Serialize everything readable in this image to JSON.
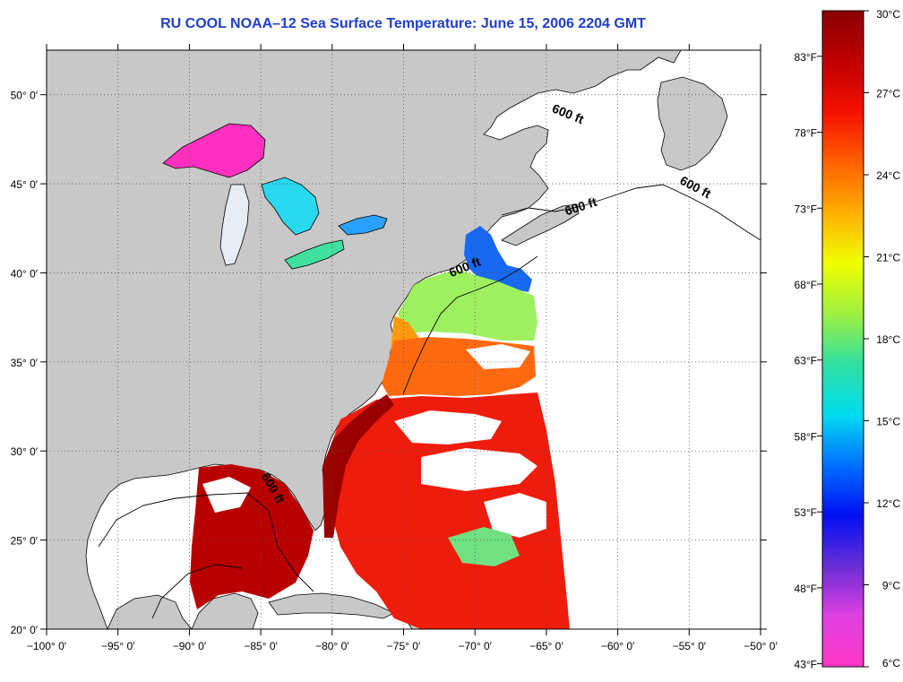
{
  "title": "RU COOL  NOAA–12  Sea Surface Temperature:  June 15, 2006 2204 GMT",
  "map": {
    "lon_range": [
      -100,
      -50
    ],
    "lat_range": [
      20,
      52.5
    ],
    "lon_ticks": [
      {
        "value": -100,
        "label": "−100° 0′"
      },
      {
        "value": -95,
        "label": "−95° 0′"
      },
      {
        "value": -90,
        "label": "−90° 0′"
      },
      {
        "value": -85,
        "label": "−85° 0′"
      },
      {
        "value": -80,
        "label": "−80° 0′"
      },
      {
        "value": -75,
        "label": "−75° 0′"
      },
      {
        "value": -70,
        "label": "−70° 0′"
      },
      {
        "value": -65,
        "label": "−65° 0′"
      },
      {
        "value": -60,
        "label": "−60° 0′"
      },
      {
        "value": -55,
        "label": "−55° 0′"
      },
      {
        "value": -50,
        "label": "−50° 0′"
      }
    ],
    "lat_ticks": [
      {
        "value": 20,
        "label": "20° 0′"
      },
      {
        "value": 25,
        "label": "25° 0′"
      },
      {
        "value": 30,
        "label": "30° 0′"
      },
      {
        "value": 35,
        "label": "35° 0′"
      },
      {
        "value": 40,
        "label": "40° 0′"
      },
      {
        "value": 45,
        "label": "45° 0′"
      },
      {
        "value": 50,
        "label": "50° 0′"
      }
    ],
    "grid": "dotted",
    "isobath_labels": [
      {
        "text": "600 ft",
        "lon": -63.6,
        "lat": 48.7
      },
      {
        "text": "600 ft",
        "lon": -54.7,
        "lat": 44.6
      },
      {
        "text": "600 ft",
        "lon": -62.5,
        "lat": 43.5
      },
      {
        "text": "600 ft",
        "lon": -70.6,
        "lat": 40.1
      },
      {
        "text": "600 ft",
        "lon": -84.4,
        "lat": 27.8
      }
    ],
    "colors": {
      "land": "#c8c8c8",
      "cloud": "#ffffff",
      "coast": "#000000",
      "title": "#1f3fc8"
    }
  },
  "colorbar": {
    "range_c": [
      6,
      30
    ],
    "colors": [
      "#ff38c8",
      "#e040e0",
      "#6a2dd8",
      "#0010f0",
      "#0070ff",
      "#00dcf0",
      "#30e0a0",
      "#a0f040",
      "#f0ff00",
      "#ffb000",
      "#ff6000",
      "#f41000",
      "#c00000",
      "#8a0000"
    ],
    "celsius_ticks": [
      {
        "value": 30,
        "label": "30°C"
      },
      {
        "value": 27,
        "label": "27°C"
      },
      {
        "value": 24,
        "label": "24°C"
      },
      {
        "value": 21,
        "label": "21°C"
      },
      {
        "value": 18,
        "label": "18°C"
      },
      {
        "value": 15,
        "label": "15°C"
      },
      {
        "value": 12,
        "label": "12°C"
      },
      {
        "value": 9,
        "label": "9°C"
      },
      {
        "value": 6,
        "label": "6°C"
      }
    ],
    "fahrenheit_ticks": [
      {
        "value": 83,
        "label": "83°F"
      },
      {
        "value": 78,
        "label": "78°F"
      },
      {
        "value": 73,
        "label": "73°F"
      },
      {
        "value": 68,
        "label": "68°F"
      },
      {
        "value": 63,
        "label": "63°F"
      },
      {
        "value": 58,
        "label": "58°F"
      },
      {
        "value": 53,
        "label": "53°F"
      },
      {
        "value": 48,
        "label": "48°F"
      },
      {
        "value": 43,
        "label": "43°F"
      }
    ]
  }
}
